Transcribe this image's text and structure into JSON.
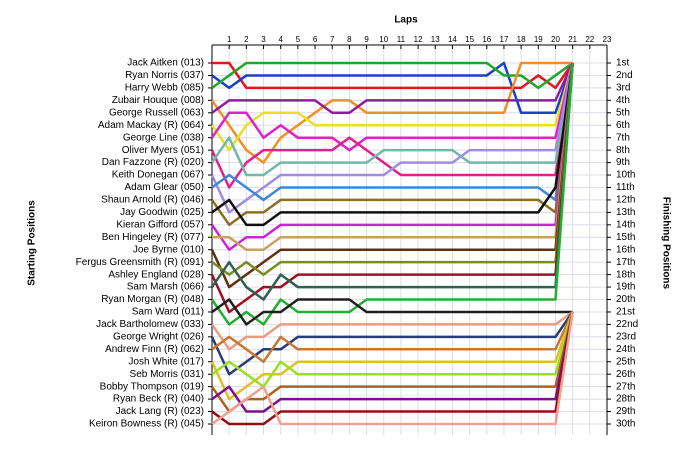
{
  "chart_data": {
    "type": "lap_chart",
    "title": "Laps",
    "y_label": "Starting Positions",
    "y2_label": "Finishing Positions",
    "x": [
      0,
      1,
      2,
      3,
      4,
      5,
      6,
      7,
      8,
      9,
      10,
      11,
      12,
      13,
      14,
      15,
      16,
      17,
      18,
      19,
      20,
      21
    ],
    "xlim": [
      0,
      23
    ],
    "xticks": [
      1,
      2,
      3,
      4,
      5,
      6,
      7,
      8,
      9,
      10,
      11,
      12,
      13,
      14,
      15,
      16,
      17,
      18,
      19,
      20,
      21,
      22,
      23
    ],
    "ylim": [
      1,
      30
    ],
    "grid": true,
    "yticks": [
      {
        "value": 1,
        "label": "1st"
      },
      {
        "value": 2,
        "label": "2nd"
      },
      {
        "value": 3,
        "label": "3rd"
      },
      {
        "value": 4,
        "label": "4th"
      },
      {
        "value": 5,
        "label": "5th"
      },
      {
        "value": 6,
        "label": "6th"
      },
      {
        "value": 7,
        "label": "7th"
      },
      {
        "value": 8,
        "label": "8th"
      },
      {
        "value": 9,
        "label": "9th"
      },
      {
        "value": 10,
        "label": "10th"
      },
      {
        "value": 11,
        "label": "11th"
      },
      {
        "value": 12,
        "label": "12th"
      },
      {
        "value": 13,
        "label": "13th"
      },
      {
        "value": 14,
        "label": "14th"
      },
      {
        "value": 15,
        "label": "15th"
      },
      {
        "value": 16,
        "label": "16th"
      },
      {
        "value": 17,
        "label": "17th"
      },
      {
        "value": 18,
        "label": "18th"
      },
      {
        "value": 19,
        "label": "19th"
      },
      {
        "value": 20,
        "label": "20th"
      },
      {
        "value": 21,
        "label": "21st"
      },
      {
        "value": 22,
        "label": "22nd"
      },
      {
        "value": 23,
        "label": "23rd"
      },
      {
        "value": 24,
        "label": "24th"
      },
      {
        "value": 25,
        "label": "25th"
      },
      {
        "value": 26,
        "label": "26th"
      },
      {
        "value": 27,
        "label": "27th"
      },
      {
        "value": 28,
        "label": "28th"
      },
      {
        "value": 29,
        "label": "29th"
      },
      {
        "value": 30,
        "label": "30th"
      }
    ],
    "series": [
      {
        "name": "Jack Aitken (013)",
        "color": "#e8141c",
        "values": [
          1,
          1,
          3,
          3,
          3,
          3,
          3,
          3,
          3,
          3,
          3,
          3,
          3,
          3,
          3,
          3,
          3,
          3,
          3,
          2,
          3,
          1
        ]
      },
      {
        "name": "Ryan Norris (037)",
        "color": "#1c3fc8",
        "values": [
          2,
          3,
          2,
          2,
          2,
          2,
          2,
          2,
          2,
          2,
          2,
          2,
          2,
          2,
          2,
          2,
          2,
          1,
          5,
          5,
          5,
          1
        ]
      },
      {
        "name": "Harry Webb (085)",
        "color": "#1ea82a",
        "values": [
          3,
          2,
          1,
          1,
          1,
          1,
          1,
          1,
          1,
          1,
          1,
          1,
          1,
          1,
          1,
          1,
          1,
          2,
          2,
          3,
          2,
          1
        ]
      },
      {
        "name": "Zubair Houque (008)",
        "color": "#f09020",
        "values": [
          4,
          6,
          8,
          9,
          7,
          6,
          5,
          4,
          4,
          5,
          5,
          5,
          5,
          5,
          5,
          5,
          5,
          5,
          1,
          1,
          1,
          1
        ]
      },
      {
        "name": "George Russell (063)",
        "color": "#8e1ca0",
        "values": [
          5,
          4,
          4,
          4,
          4,
          4,
          4,
          5,
          5,
          4,
          4,
          4,
          4,
          4,
          4,
          4,
          4,
          4,
          4,
          4,
          4,
          1
        ]
      },
      {
        "name": "Adam Mackay (R) (064)",
        "color": "#e8e020",
        "values": [
          6,
          8,
          6,
          5,
          5,
          5,
          6,
          6,
          6,
          6,
          6,
          6,
          6,
          6,
          6,
          6,
          6,
          6,
          6,
          6,
          6,
          1
        ]
      },
      {
        "name": "George Line (038)",
        "color": "#e020c8",
        "values": [
          7,
          5,
          5,
          7,
          6,
          7,
          7,
          7,
          8,
          7,
          7,
          7,
          7,
          7,
          7,
          7,
          7,
          7,
          7,
          7,
          7,
          1
        ]
      },
      {
        "name": "Oliver Myers (051)",
        "color": "#e0208c",
        "values": [
          8,
          11,
          9,
          8,
          8,
          8,
          8,
          8,
          7,
          8,
          9,
          10,
          10,
          10,
          10,
          10,
          10,
          10,
          10,
          10,
          10,
          1
        ]
      },
      {
        "name": "Dan Fazzone (R) (020)",
        "color": "#70b8a8",
        "values": [
          9,
          7,
          10,
          10,
          9,
          9,
          9,
          9,
          9,
          9,
          8,
          8,
          8,
          8,
          8,
          9,
          9,
          9,
          9,
          9,
          9,
          1
        ]
      },
      {
        "name": "Keith Donegan (067)",
        "color": "#a08ce0",
        "values": [
          10,
          13,
          12,
          11,
          10,
          10,
          10,
          10,
          10,
          10,
          10,
          9,
          9,
          9,
          9,
          8,
          8,
          8,
          8,
          8,
          8,
          1
        ]
      },
      {
        "name": "Adam Glear (050)",
        "color": "#3c88d8",
        "values": [
          11,
          10,
          11,
          12,
          11,
          11,
          11,
          11,
          11,
          11,
          11,
          11,
          11,
          11,
          11,
          11,
          11,
          11,
          11,
          11,
          12,
          1
        ]
      },
      {
        "name": "Shaun Arnold (R) (046)",
        "color": "#8c7020",
        "values": [
          12,
          14,
          13,
          13,
          12,
          12,
          12,
          12,
          12,
          12,
          12,
          12,
          12,
          12,
          12,
          12,
          12,
          12,
          12,
          12,
          13,
          1
        ]
      },
      {
        "name": "Jay Goodwin (025)",
        "color": "#101010",
        "values": [
          13,
          12,
          14,
          14,
          13,
          13,
          13,
          13,
          13,
          13,
          13,
          13,
          13,
          13,
          13,
          13,
          13,
          13,
          13,
          13,
          11,
          1
        ]
      },
      {
        "name": "Kieran Gifford (057)",
        "color": "#d020e0",
        "values": [
          14,
          16,
          15,
          15,
          14,
          14,
          14,
          14,
          14,
          14,
          14,
          14,
          14,
          14,
          14,
          14,
          14,
          14,
          14,
          14,
          14,
          1
        ]
      },
      {
        "name": "Ben Hingeley (R) (077)",
        "color": "#c8a060",
        "values": [
          15,
          15,
          16,
          16,
          15,
          15,
          15,
          15,
          15,
          15,
          15,
          15,
          15,
          15,
          15,
          15,
          15,
          15,
          15,
          15,
          15,
          1
        ]
      },
      {
        "name": "Joe Byrne (010)",
        "color": "#603010",
        "values": [
          16,
          19,
          18,
          17,
          16,
          16,
          16,
          16,
          16,
          16,
          16,
          16,
          16,
          16,
          16,
          16,
          16,
          16,
          16,
          16,
          16,
          1
        ]
      },
      {
        "name": "Fergus Greensmith (R) (091)",
        "color": "#7a8c20",
        "values": [
          17,
          18,
          17,
          18,
          17,
          17,
          17,
          17,
          17,
          17,
          17,
          17,
          17,
          17,
          17,
          17,
          17,
          17,
          17,
          17,
          17,
          1
        ]
      },
      {
        "name": "Ashley England (028)",
        "color": "#a01020",
        "values": [
          18,
          21,
          20,
          19,
          19,
          18,
          18,
          18,
          18,
          18,
          18,
          18,
          18,
          18,
          18,
          18,
          18,
          18,
          18,
          18,
          18,
          1
        ]
      },
      {
        "name": "Sam Marsh (066)",
        "color": "#306050",
        "values": [
          19,
          17,
          19,
          20,
          18,
          19,
          19,
          19,
          19,
          19,
          19,
          19,
          19,
          19,
          19,
          19,
          19,
          19,
          19,
          19,
          19,
          1
        ]
      },
      {
        "name": "Ryan Morgan (R) (048)",
        "color": "#20b030",
        "values": [
          20,
          22,
          21,
          22,
          20,
          21,
          21,
          21,
          21,
          20,
          20,
          20,
          20,
          20,
          20,
          20,
          20,
          20,
          20,
          20,
          20,
          1
        ]
      },
      {
        "name": "Sam Ward (011)",
        "color": "#202020",
        "values": [
          21,
          20,
          22,
          21,
          21,
          20,
          20,
          20,
          20,
          21,
          21,
          21,
          21,
          21,
          21,
          21,
          21,
          21,
          21,
          21,
          21,
          21
        ]
      },
      {
        "name": "Jack Bartholomew (033)",
        "color": "#e89c80",
        "values": [
          22,
          24,
          23,
          23,
          22,
          22,
          22,
          22,
          22,
          22,
          22,
          22,
          22,
          22,
          22,
          22,
          22,
          22,
          22,
          22,
          22,
          21
        ]
      },
      {
        "name": "George Wright (026)",
        "color": "#283c78",
        "values": [
          23,
          26,
          25,
          24,
          24,
          23,
          23,
          23,
          23,
          23,
          23,
          23,
          23,
          23,
          23,
          23,
          23,
          23,
          23,
          23,
          23,
          21
        ]
      },
      {
        "name": "Andrew Finn (R) (062)",
        "color": "#c87830",
        "values": [
          24,
          23,
          24,
          25,
          23,
          24,
          24,
          24,
          24,
          24,
          24,
          24,
          24,
          24,
          24,
          24,
          24,
          24,
          24,
          24,
          24,
          21
        ]
      },
      {
        "name": "Josh White (017)",
        "color": "#e0c020",
        "values": [
          25,
          28,
          27,
          26,
          26,
          25,
          25,
          25,
          25,
          25,
          25,
          25,
          25,
          25,
          25,
          25,
          25,
          25,
          25,
          25,
          25,
          21
        ]
      },
      {
        "name": "Seb Morris (031)",
        "color": "#98e020",
        "values": [
          26,
          25,
          26,
          27,
          25,
          26,
          26,
          26,
          26,
          26,
          26,
          26,
          26,
          26,
          26,
          26,
          26,
          26,
          26,
          26,
          26,
          21
        ]
      },
      {
        "name": "Bobby Thompson (019)",
        "color": "#b06018",
        "values": [
          27,
          29,
          28,
          28,
          27,
          27,
          27,
          27,
          27,
          27,
          27,
          27,
          27,
          27,
          27,
          27,
          27,
          27,
          27,
          27,
          27,
          21
        ]
      },
      {
        "name": "Ryan Beck (R) (040)",
        "color": "#7a1090",
        "values": [
          28,
          27,
          29,
          29,
          28,
          28,
          28,
          28,
          28,
          28,
          28,
          28,
          28,
          28,
          28,
          28,
          28,
          28,
          28,
          28,
          28,
          21
        ]
      },
      {
        "name": "Jack Lang (R) (023)",
        "color": "#901010",
        "values": [
          29,
          30,
          30,
          30,
          29,
          29,
          29,
          29,
          29,
          29,
          29,
          29,
          29,
          29,
          29,
          29,
          29,
          29,
          29,
          29,
          29,
          21
        ]
      },
      {
        "name": "Keiron Bowness (R) (045)",
        "color": "#f0a090",
        "values": [
          30,
          29,
          28,
          27,
          30,
          30,
          30,
          30,
          30,
          30,
          30,
          30,
          30,
          30,
          30,
          30,
          30,
          30,
          30,
          30,
          30,
          21
        ]
      }
    ]
  }
}
